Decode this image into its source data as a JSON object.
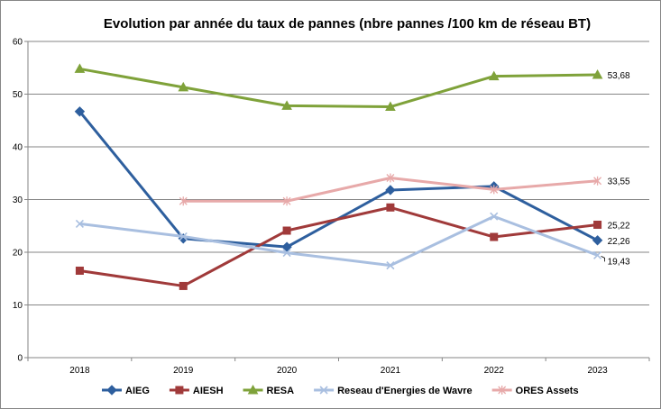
{
  "chart_data": {
    "type": "line",
    "title": "Evolution par année du taux de pannes (nbre pannes /100 km de réseau BT)",
    "xlabel": "",
    "ylabel": "",
    "ylim": [
      0,
      60
    ],
    "yticks": [
      0,
      10,
      20,
      30,
      40,
      50,
      60
    ],
    "grid": true,
    "legend_position": "bottom",
    "categories": [
      "2018",
      "2019",
      "2020",
      "2021",
      "2022",
      "2023"
    ],
    "series": [
      {
        "name": "AIEG",
        "color": "#2e5f9e",
        "marker": "diamond",
        "values": [
          46.7,
          22.6,
          21.0,
          31.8,
          32.5,
          22.26
        ],
        "last_label": "22,26"
      },
      {
        "name": "AIESH",
        "color": "#a03a3a",
        "marker": "square",
        "values": [
          16.5,
          13.6,
          24.1,
          28.5,
          22.9,
          25.22
        ],
        "last_label": "25,22"
      },
      {
        "name": "RESA",
        "color": "#7fa23a",
        "marker": "triangle",
        "values": [
          54.8,
          51.3,
          47.8,
          47.6,
          53.4,
          53.68
        ],
        "last_label": "53,68"
      },
      {
        "name": "Reseau d'Energies de Wavre",
        "color": "#a9bfe0",
        "marker": "x",
        "values": [
          25.4,
          23.0,
          19.9,
          17.5,
          26.8,
          19.43
        ],
        "last_label": "19,43"
      },
      {
        "name": "ORES Assets",
        "color": "#e7a9a9",
        "marker": "star",
        "values": [
          null,
          29.7,
          29.7,
          34.1,
          31.9,
          33.55
        ],
        "last_label": "33,55"
      }
    ]
  }
}
